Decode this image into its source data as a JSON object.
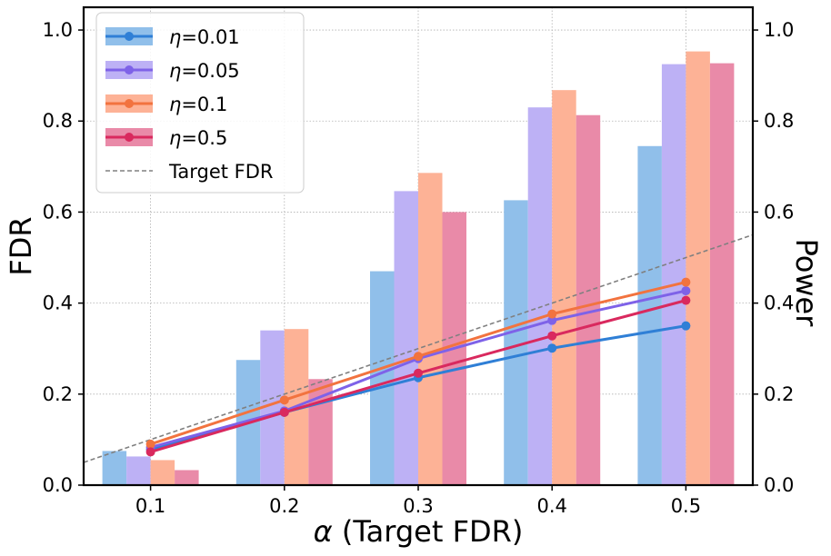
{
  "chart_data": {
    "type": "bar+line",
    "xlabel_symbol": "α",
    "xlabel_text": " (Target FDR)",
    "ylabel_left": "FDR",
    "ylabel_right": "Power",
    "categories": [
      "0.1",
      "0.2",
      "0.3",
      "0.4",
      "0.5"
    ],
    "x_values": [
      0.1,
      0.2,
      0.3,
      0.4,
      0.5
    ],
    "xlim": [
      0.05,
      0.55
    ],
    "ylim_left": [
      0,
      1.05
    ],
    "ylim_right": [
      0,
      1.05
    ],
    "yticks_left": [
      "0.0",
      "0.2",
      "0.4",
      "0.6",
      "0.8",
      "1.0"
    ],
    "yticks_right": [
      "0.0",
      "0.2",
      "0.4",
      "0.6",
      "0.8",
      "1.0"
    ],
    "grid": true,
    "legend_placement": "top-left",
    "series": [
      {
        "name_symbol": "η",
        "name_value": "=0.01",
        "color": "#2f7fd6",
        "bar_color": "#90bfea",
        "fdr": [
          0.078,
          0.16,
          0.236,
          0.301,
          0.35
        ],
        "power": [
          0.075,
          0.275,
          0.47,
          0.626,
          0.745
        ]
      },
      {
        "name_symbol": "η",
        "name_value": "=0.05",
        "color": "#7e62e8",
        "bar_color": "#bdb1f5",
        "fdr": [
          0.083,
          0.163,
          0.278,
          0.362,
          0.427
        ],
        "power": [
          0.063,
          0.34,
          0.646,
          0.83,
          0.925
        ]
      },
      {
        "name_symbol": "η",
        "name_value": "=0.1",
        "color": "#f2733f",
        "bar_color": "#fdb296",
        "fdr": [
          0.09,
          0.187,
          0.283,
          0.376,
          0.446
        ],
        "power": [
          0.055,
          0.343,
          0.686,
          0.868,
          0.953
        ]
      },
      {
        "name_symbol": "η",
        "name_value": "=0.5",
        "color": "#d9295e",
        "bar_color": "#e98aa8",
        "fdr": [
          0.073,
          0.16,
          0.246,
          0.328,
          0.406
        ],
        "power": [
          0.033,
          0.233,
          0.6,
          0.813,
          0.927
        ]
      }
    ],
    "target_line": {
      "name": "Target FDR",
      "color": "#808080",
      "x": [
        0.05,
        0.55
      ],
      "y": [
        0.05,
        0.55
      ]
    }
  }
}
